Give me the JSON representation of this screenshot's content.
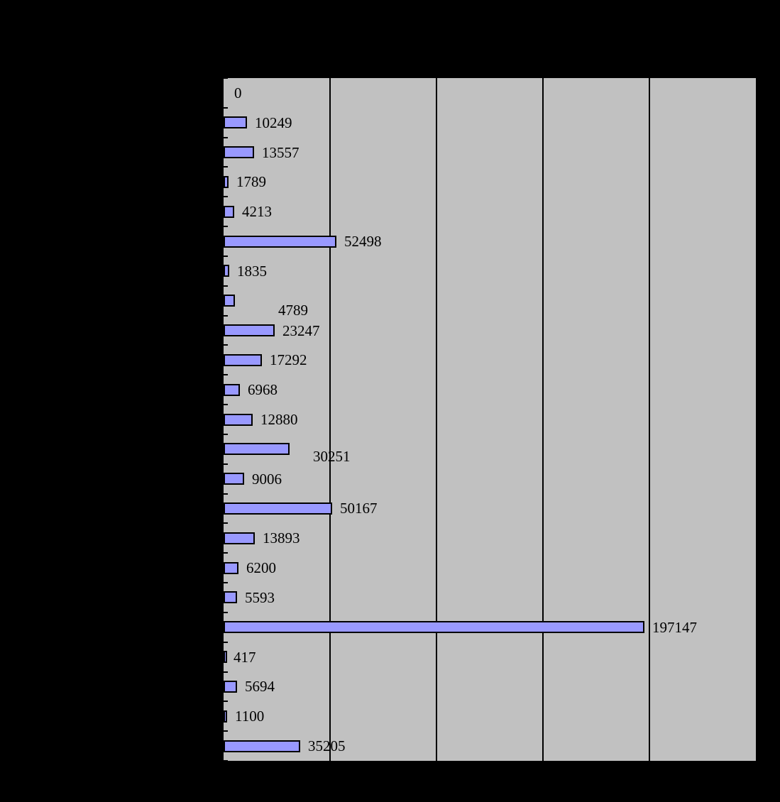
{
  "chart_data": {
    "type": "bar",
    "orientation": "horizontal",
    "values": [
      0,
      10249,
      13557,
      1789,
      4213,
      52498,
      1835,
      4789,
      23247,
      17292,
      6968,
      12880,
      30251,
      9006,
      50167,
      13893,
      6200,
      5593,
      197147,
      417,
      5694,
      1100,
      35205
    ],
    "data_labels": [
      "0",
      "10249",
      "13557",
      "1789",
      "4213",
      "52498",
      "1835",
      "4789",
      "23247",
      "17292",
      "6968",
      "12880",
      "30251",
      "9006",
      "50167",
      "13893",
      "6200",
      "5593",
      "197147",
      "417",
      "5694",
      "1100",
      "35205"
    ],
    "xlim": [
      0,
      250000
    ],
    "grid_interval": 50000,
    "grid": true,
    "legend": false,
    "axis_tick_labels_visible": false,
    "category_labels_visible": false
  },
  "label_overrides": [
    {
      "index": 0,
      "x": 15,
      "dy": 0
    },
    {
      "index": 7,
      "x": 77,
      "dy": 13
    },
    {
      "index": 12,
      "x": 126,
      "dy": 10
    }
  ],
  "colors": {
    "background": "#000000",
    "plot_background": "#c1c1c1",
    "bar_fill": "#9999ff",
    "bar_border": "#000000",
    "gridline": "#000000",
    "tick": "#000000",
    "data_label": "#000000"
  }
}
